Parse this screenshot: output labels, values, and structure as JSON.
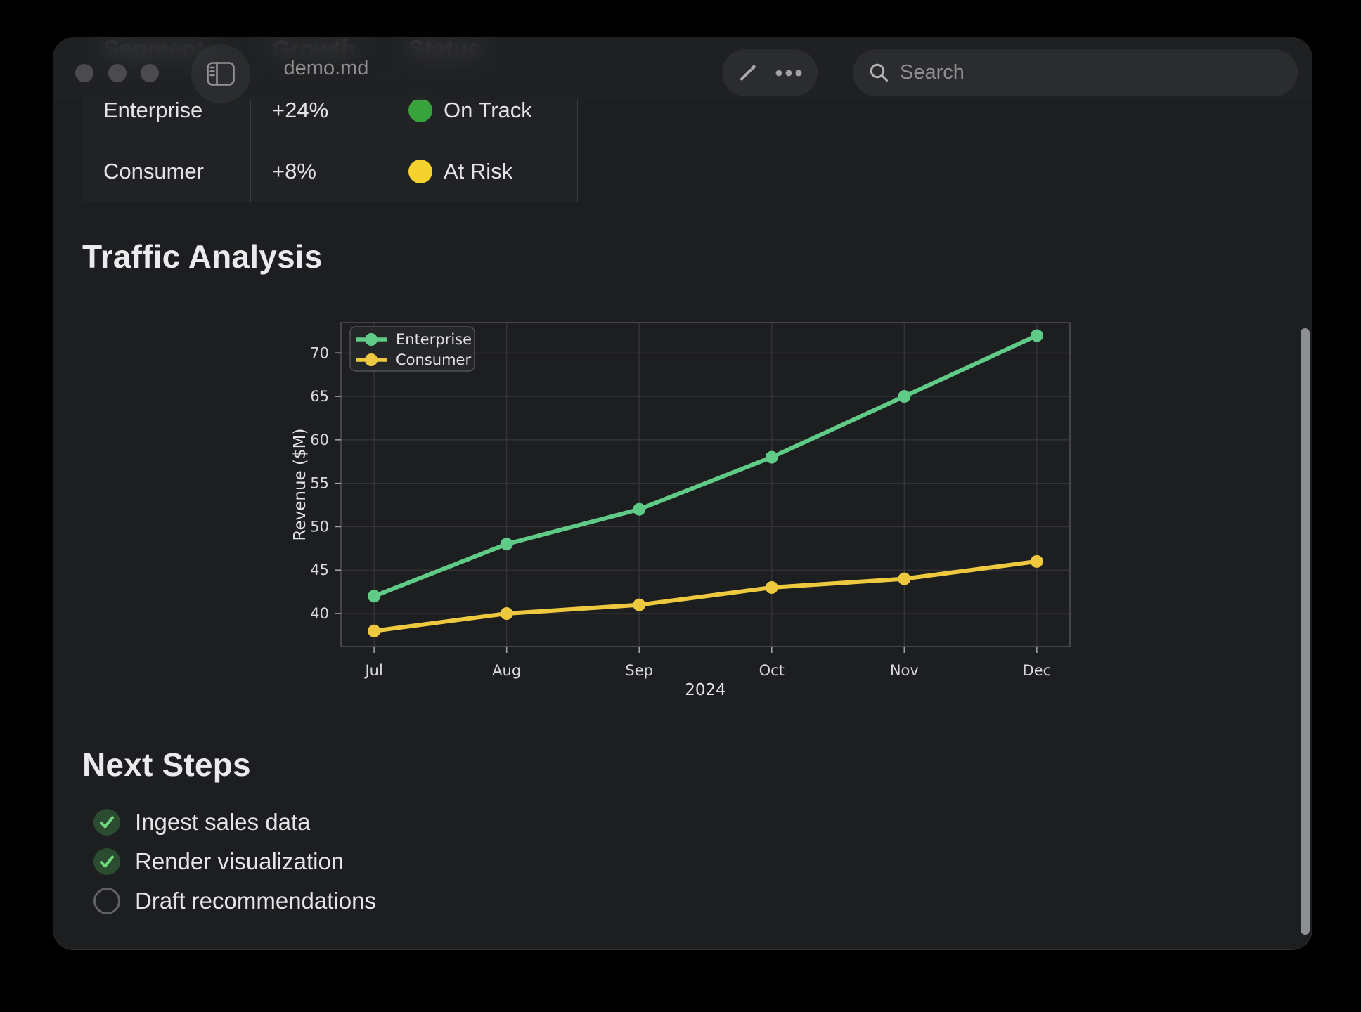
{
  "window": {
    "title": "demo.md"
  },
  "titlebar": {
    "traffic_lights": [
      "close",
      "minimize",
      "zoom"
    ],
    "search_placeholder": "Search"
  },
  "table": {
    "headers": [
      "Segment",
      "Growth",
      "Status"
    ],
    "rows": [
      {
        "segment": "Enterprise",
        "growth": "+24%",
        "status": "On Track",
        "status_color": "#38a23c"
      },
      {
        "segment": "Consumer",
        "growth": "+8%",
        "status": "At Risk",
        "status_color": "#f5d22e"
      }
    ]
  },
  "sections": {
    "traffic_title": "Traffic Analysis",
    "next_steps_title": "Next Steps"
  },
  "checklist": [
    {
      "label": "Ingest sales data",
      "checked": true
    },
    {
      "label": "Render visualization",
      "checked": true
    },
    {
      "label": "Draft recommendations",
      "checked": false
    }
  ],
  "chart_data": {
    "type": "line",
    "x": [
      "Jul",
      "Aug",
      "Sep",
      "Oct",
      "Nov",
      "Dec"
    ],
    "series": [
      {
        "name": "Enterprise",
        "color": "#5fcb87",
        "values": [
          42,
          48,
          52,
          58,
          65,
          72
        ]
      },
      {
        "name": "Consumer",
        "color": "#eec83e",
        "values": [
          38,
          40,
          41,
          43,
          44,
          46
        ]
      }
    ],
    "xlabel": "2024",
    "ylabel": "Revenue ($M)",
    "yticks": [
      40,
      45,
      50,
      55,
      60,
      65,
      70
    ],
    "ylim": [
      36.2,
      73.5
    ],
    "xlim": [
      -0.25,
      5.25
    ],
    "grid": true,
    "legend_position": "upper left",
    "colors": {
      "grid": "#353638",
      "spine": "#55565a",
      "tick": "#9fa0a2",
      "legend_bg": "#252628",
      "legend_border": "#515254"
    }
  }
}
